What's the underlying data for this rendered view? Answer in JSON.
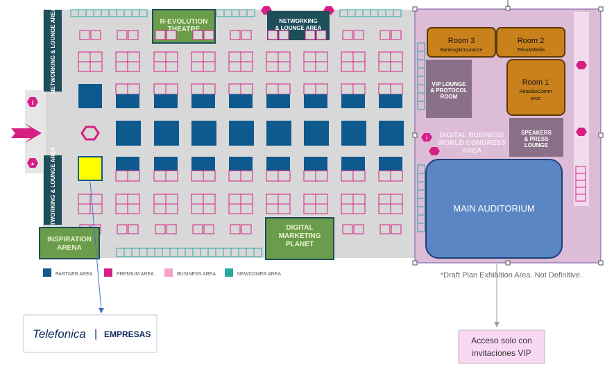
{
  "labels": {
    "networking_lounge_left": "NETWORKING & LOUNGE AREA",
    "networking_lounge_top": "NETWORKING & LOUNGE AREA",
    "revolution_theatre": "R-EVOLUTION THEATRE",
    "inspiration_arena": "INSPIRATION ARENA",
    "digital_marketing_planet": "DIGITAL MARKETING PLANET",
    "vip_lounge": "VIP LOUNGE & PROTOCOL ROOM",
    "speakers_lounge": "SPEAKERS & PRESS LOUNGE",
    "congress_area": "DIGITAL BUSINESS WORLD CONGRESS AREA",
    "main_auditorium": "MAIN AUDITORIUM",
    "draft_note": "*Draft Plan Exhibition Area. Not Definitive."
  },
  "rooms": {
    "room3_title": "Room 3",
    "room3_sub": "Banking&Insurance",
    "room2_title": "Room 2",
    "room2_sub": "Telco&Media",
    "room1_title": "Room 1",
    "room1_sub_line1": "Retail&eComm",
    "room1_sub_line2": "erce"
  },
  "legend": [
    {
      "label": "PARTNER AREA",
      "color": "#0e5a8f"
    },
    {
      "label": "PREMIUM AREA",
      "color": "#d61f85"
    },
    {
      "label": "BUSINESS AREA",
      "color": "#f3a3c9"
    },
    {
      "label": "NEWCOMER AREA",
      "color": "#2aa8a0"
    }
  ],
  "logo": {
    "brand": "Telefonica",
    "divider": "|",
    "division": "EMPRESAS"
  },
  "callout": {
    "line1": "Acceso solo con",
    "line2": "invitaciones VIP"
  },
  "colors": {
    "floor": "#d8d8d8",
    "partner": "#0e5a8f",
    "premium": "#d61f85",
    "newcomer": "#2aa8a0",
    "green_zone": "#6a9c4b",
    "teal_block": "#1d4e5a",
    "vip_zone": "#dcbcd6",
    "room_orange": "#c9811c",
    "auditorium": "#5b86c4",
    "highlight_yellow": "#ffff00",
    "callout_bg": "#f9d8f4"
  }
}
